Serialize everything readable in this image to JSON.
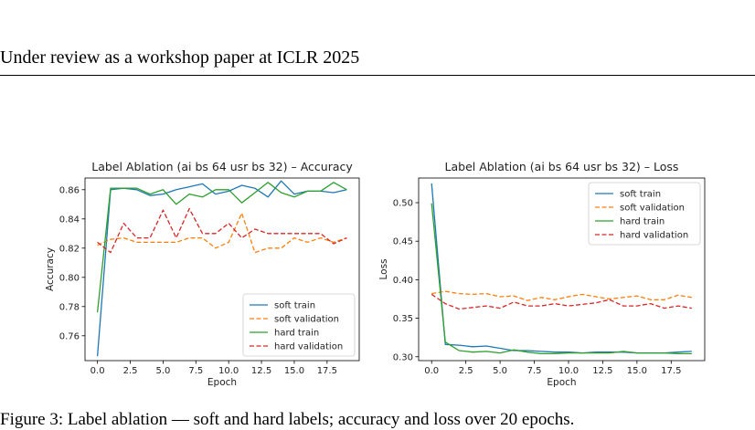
{
  "header": {
    "text": "Under review as a workshop paper at ICLR 2025"
  },
  "caption": {
    "text": "Figure 3: Label ablation — soft and hard labels; accuracy and loss over 20 epochs."
  },
  "chart_data": [
    {
      "type": "line",
      "title": "Label Ablation (ai bs 64 usr bs 32) – Accuracy",
      "xlabel": "Epoch",
      "ylabel": "Accuracy",
      "xlim": [
        -0.95,
        19.95
      ],
      "ylim": [
        0.743,
        0.868
      ],
      "xticks": [
        0.0,
        2.5,
        5.0,
        7.5,
        10.0,
        12.5,
        15.0,
        17.5
      ],
      "yticks": [
        0.76,
        0.78,
        0.8,
        0.82,
        0.84,
        0.86
      ],
      "grid": false,
      "legend": "lower-right",
      "x": [
        0,
        1,
        2,
        3,
        4,
        5,
        6,
        7,
        8,
        9,
        10,
        11,
        12,
        13,
        14,
        15,
        16,
        17,
        18,
        19
      ],
      "series": [
        {
          "name": "soft train",
          "color": "#1f77b4",
          "dash": "solid",
          "values": [
            0.746,
            0.86,
            0.861,
            0.86,
            0.856,
            0.857,
            0.86,
            0.862,
            0.864,
            0.857,
            0.859,
            0.863,
            0.861,
            0.855,
            0.866,
            0.857,
            0.859,
            0.859,
            0.858,
            0.86
          ]
        },
        {
          "name": "soft validation",
          "color": "#ff7f0e",
          "dash": "dashed",
          "values": [
            0.822,
            0.826,
            0.827,
            0.824,
            0.824,
            0.824,
            0.824,
            0.827,
            0.827,
            0.82,
            0.824,
            0.844,
            0.817,
            0.82,
            0.82,
            0.827,
            0.824,
            0.827,
            0.824,
            0.827
          ]
        },
        {
          "name": "hard train",
          "color": "#2ca02c",
          "dash": "solid",
          "values": [
            0.776,
            0.861,
            0.861,
            0.861,
            0.857,
            0.86,
            0.85,
            0.857,
            0.855,
            0.86,
            0.86,
            0.851,
            0.858,
            0.865,
            0.858,
            0.855,
            0.859,
            0.859,
            0.865,
            0.86
          ]
        },
        {
          "name": "hard validation",
          "color": "#d62728",
          "dash": "dashed",
          "values": [
            0.824,
            0.817,
            0.837,
            0.827,
            0.827,
            0.846,
            0.827,
            0.847,
            0.83,
            0.83,
            0.837,
            0.827,
            0.833,
            0.83,
            0.83,
            0.83,
            0.83,
            0.83,
            0.823,
            0.827
          ]
        }
      ]
    },
    {
      "type": "line",
      "title": "Label Ablation (ai bs 64 usr bs 32) – Loss",
      "xlabel": "Epoch",
      "ylabel": "Loss",
      "xlim": [
        -0.95,
        19.95
      ],
      "ylim": [
        0.295,
        0.532
      ],
      "xticks": [
        0.0,
        2.5,
        5.0,
        7.5,
        10.0,
        12.5,
        15.0,
        17.5
      ],
      "yticks": [
        0.3,
        0.35,
        0.4,
        0.45,
        0.5
      ],
      "grid": false,
      "legend": "upper-right",
      "x": [
        0,
        1,
        2,
        3,
        4,
        5,
        6,
        7,
        8,
        9,
        10,
        11,
        12,
        13,
        14,
        15,
        16,
        17,
        18,
        19
      ],
      "series": [
        {
          "name": "soft train",
          "color": "#1f77b4",
          "dash": "solid",
          "values": [
            0.525,
            0.316,
            0.315,
            0.313,
            0.314,
            0.311,
            0.308,
            0.308,
            0.307,
            0.306,
            0.306,
            0.305,
            0.306,
            0.306,
            0.306,
            0.305,
            0.305,
            0.305,
            0.306,
            0.307
          ]
        },
        {
          "name": "soft validation",
          "color": "#ff7f0e",
          "dash": "dashed",
          "values": [
            0.382,
            0.385,
            0.382,
            0.381,
            0.382,
            0.378,
            0.379,
            0.373,
            0.377,
            0.374,
            0.378,
            0.381,
            0.378,
            0.375,
            0.377,
            0.379,
            0.374,
            0.374,
            0.38,
            0.377
          ]
        },
        {
          "name": "hard train",
          "color": "#2ca02c",
          "dash": "solid",
          "values": [
            0.499,
            0.319,
            0.308,
            0.306,
            0.307,
            0.305,
            0.309,
            0.306,
            0.304,
            0.304,
            0.305,
            0.305,
            0.305,
            0.305,
            0.307,
            0.305,
            0.305,
            0.305,
            0.304,
            0.304
          ]
        },
        {
          "name": "hard validation",
          "color": "#d62728",
          "dash": "dashed",
          "values": [
            0.381,
            0.369,
            0.362,
            0.364,
            0.366,
            0.363,
            0.371,
            0.366,
            0.366,
            0.369,
            0.366,
            0.368,
            0.37,
            0.374,
            0.366,
            0.366,
            0.369,
            0.363,
            0.366,
            0.363
          ]
        }
      ]
    }
  ]
}
